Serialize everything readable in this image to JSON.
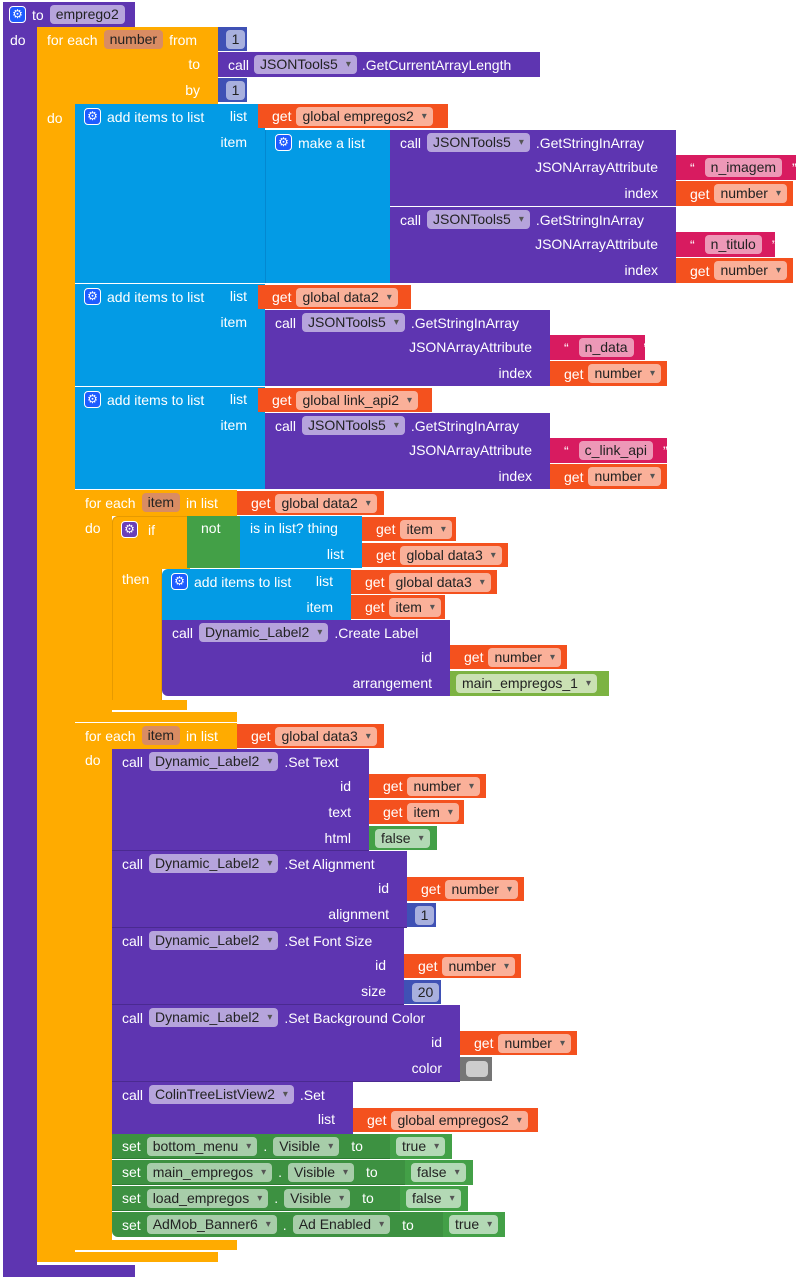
{
  "kw": {
    "to": "to",
    "do": "do",
    "get": "get",
    "call": "call",
    "set": "set",
    "for_each": "for each",
    "from": "from",
    "by": "by",
    "in_list": "in list",
    "add_items": "add items to list",
    "make_list": "make a list",
    "list": "list",
    "item": "item",
    "index": "index",
    "id": "id",
    "json_attr": "JSONArrayAttribute",
    "if": "if",
    "then": "then",
    "not": "not",
    "is_in_list": "is in list? thing",
    "dot": "."
  },
  "procedure": {
    "name": "emprego2"
  },
  "vars": {
    "number": "number",
    "item": "item",
    "g_empregos2": "global empregos2",
    "g_data2": "global data2",
    "g_link_api2": "global link_api2",
    "g_data3": "global data3"
  },
  "components": {
    "json": "JSONTools5",
    "dyn": "Dynamic_Label2",
    "colin": "ColinTreeListView2",
    "bottom_menu": "bottom_menu",
    "main_empregos": "main_empregos",
    "load_empregos": "load_empregos",
    "admob": "AdMob_Banner6",
    "main_empregos_1": "main_empregos_1"
  },
  "methods": {
    "get_length": ".GetCurrentArrayLength",
    "get_string": ".GetStringInArray",
    "create_label": ".Create Label",
    "set_text": ".Set Text",
    "set_alignment": ".Set Alignment",
    "set_font_size": ".Set Font Size",
    "set_bg_color": ".Set Background Color",
    "set": ".Set"
  },
  "params": {
    "arrangement": "arrangement",
    "text": "text",
    "html": "html",
    "alignment": "alignment",
    "size": "size",
    "color": "color"
  },
  "properties": {
    "visible": "Visible",
    "ad_enabled": "Ad Enabled"
  },
  "strings": {
    "n_imagem": "n_imagem",
    "n_titulo": "n_titulo",
    "n_data": "n_data",
    "c_link_api": "c_link_api"
  },
  "values": {
    "from": "1",
    "by": "1",
    "alignment": "1",
    "size": "20",
    "true": "true",
    "false": "false",
    "swatch_color": "#cccccc"
  },
  "colors": {
    "procedure": "#5e35b1",
    "control": "#ffab00",
    "lists": "#039be5",
    "variables": "#f4511e",
    "text": "#d81b60",
    "math": "#3f51b5",
    "logic": "#43a047",
    "component": "#7cb342"
  }
}
